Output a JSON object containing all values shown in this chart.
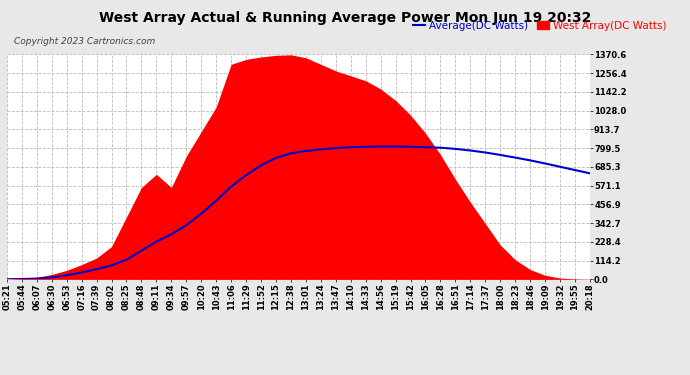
{
  "title": "West Array Actual & Running Average Power Mon Jun 19 20:32",
  "copyright": "Copyright 2023 Cartronics.com",
  "legend_avg": "Average(DC Watts)",
  "legend_west": "West Array(DC Watts)",
  "bg_color": "#e8e8e8",
  "plot_bg_color": "#ffffff",
  "grid_color": "#bbbbbb",
  "fill_color": "#ff0000",
  "avg_line_color": "#0000cc",
  "title_color": "#000000",
  "copyright_color": "#444444",
  "yticks": [
    0.0,
    114.2,
    228.4,
    342.7,
    456.9,
    571.1,
    685.3,
    799.5,
    913.7,
    1028.0,
    1142.2,
    1256.4,
    1370.6
  ],
  "ymax": 1370.6,
  "xtick_labels": [
    "05:21",
    "05:44",
    "06:07",
    "06:30",
    "06:53",
    "07:16",
    "07:39",
    "08:02",
    "08:25",
    "08:48",
    "09:11",
    "09:34",
    "09:57",
    "10:20",
    "10:43",
    "11:06",
    "11:29",
    "11:52",
    "12:15",
    "12:38",
    "13:01",
    "13:24",
    "13:47",
    "14:10",
    "14:33",
    "14:56",
    "15:19",
    "15:42",
    "16:05",
    "16:28",
    "16:51",
    "17:14",
    "17:37",
    "18:00",
    "18:23",
    "18:46",
    "19:09",
    "19:32",
    "19:55",
    "20:18"
  ],
  "west_array_y": [
    2,
    5,
    12,
    30,
    55,
    90,
    130,
    200,
    380,
    560,
    640,
    560,
    750,
    900,
    1050,
    1310,
    1340,
    1355,
    1365,
    1368,
    1350,
    1310,
    1270,
    1240,
    1210,
    1160,
    1090,
    1000,
    890,
    760,
    610,
    470,
    340,
    210,
    120,
    60,
    25,
    8,
    3,
    1
  ],
  "avg_y": [
    1,
    2,
    5,
    12,
    25,
    42,
    62,
    85,
    120,
    175,
    230,
    275,
    330,
    400,
    480,
    565,
    635,
    695,
    740,
    768,
    782,
    792,
    800,
    805,
    808,
    810,
    810,
    808,
    805,
    802,
    795,
    785,
    773,
    758,
    742,
    725,
    706,
    686,
    666,
    646
  ],
  "title_fontsize": 10,
  "copyright_fontsize": 6.5,
  "tick_fontsize": 6,
  "legend_fontsize": 7.5
}
